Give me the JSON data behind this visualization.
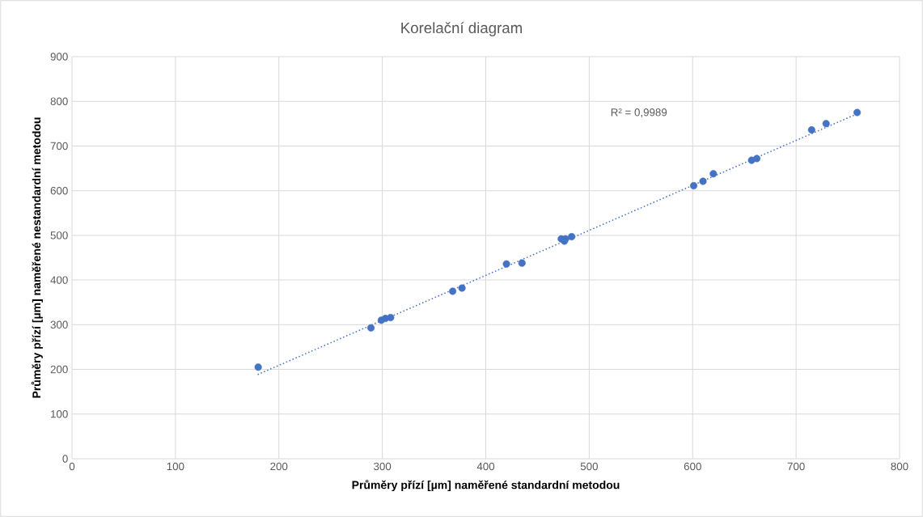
{
  "chart_data": {
    "type": "scatter",
    "title": "Korelační diagram",
    "xlabel": "Průměry přízí [µm] naměřené standardní metodou",
    "ylabel": "Průměry přízí [µm] naměřené nestandardní metodou",
    "xlim": [
      0,
      800
    ],
    "xticks": [
      0,
      100,
      200,
      300,
      400,
      500,
      600,
      700,
      800
    ],
    "ylim": [
      0,
      900
    ],
    "yticks": [
      0,
      100,
      200,
      300,
      400,
      500,
      600,
      700,
      800,
      900
    ],
    "grid": true,
    "series": [
      {
        "color": "#4472c4",
        "marker": "circle",
        "x": [
          180,
          289,
          299,
          303,
          308,
          368,
          377,
          420,
          435,
          473,
          476,
          477,
          483,
          601,
          610,
          620,
          657,
          662,
          715,
          729,
          759
        ],
        "values": [
          205,
          293,
          310,
          314,
          316,
          375,
          382,
          436,
          438,
          492,
          487,
          492,
          497,
          611,
          621,
          638,
          668,
          672,
          736,
          750,
          775
        ]
      },
      {
        "type": "line",
        "color": "#4472c4",
        "marker": "none",
        "line_style": "dotted",
        "x": [
          180,
          760
        ],
        "values": [
          189,
          773
        ]
      }
    ],
    "annotations": [
      "R² = 0,9989"
    ]
  }
}
